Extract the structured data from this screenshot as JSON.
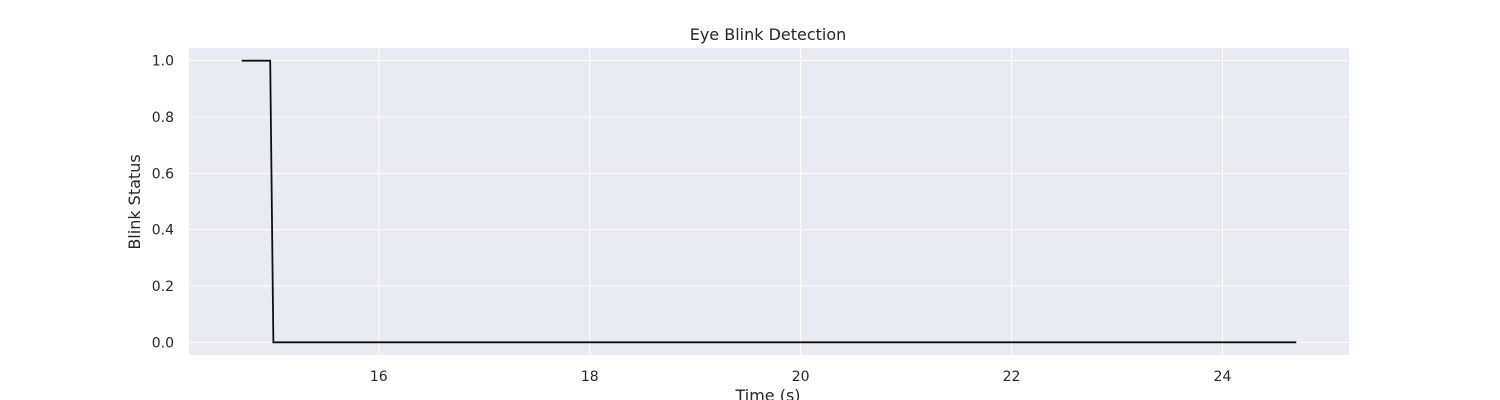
{
  "chart_data": {
    "type": "line",
    "title": "Eye Blink Detection",
    "xlabel": "Time (s)",
    "ylabel": "Blink Status",
    "xlim": [
      14.2,
      25.2
    ],
    "ylim": [
      -0.045,
      1.045
    ],
    "xticks": [
      16,
      18,
      20,
      22,
      24
    ],
    "xtick_labels": [
      "16",
      "18",
      "20",
      "22",
      "24"
    ],
    "yticks": [
      0.0,
      0.2,
      0.4,
      0.6,
      0.8,
      1.0
    ],
    "ytick_labels": [
      "0.0",
      "0.2",
      "0.4",
      "0.6",
      "0.8",
      "1.0"
    ],
    "grid": true,
    "legend": "none",
    "series": [
      {
        "color": "#111111",
        "x": [
          14.7,
          14.97,
          15.0,
          24.7
        ],
        "y": [
          1.0,
          1.0,
          0.0,
          0.0
        ]
      }
    ]
  },
  "colors": {
    "plot_background": "#eaeaf2",
    "grid": "#ffffff",
    "text": "#262626"
  }
}
